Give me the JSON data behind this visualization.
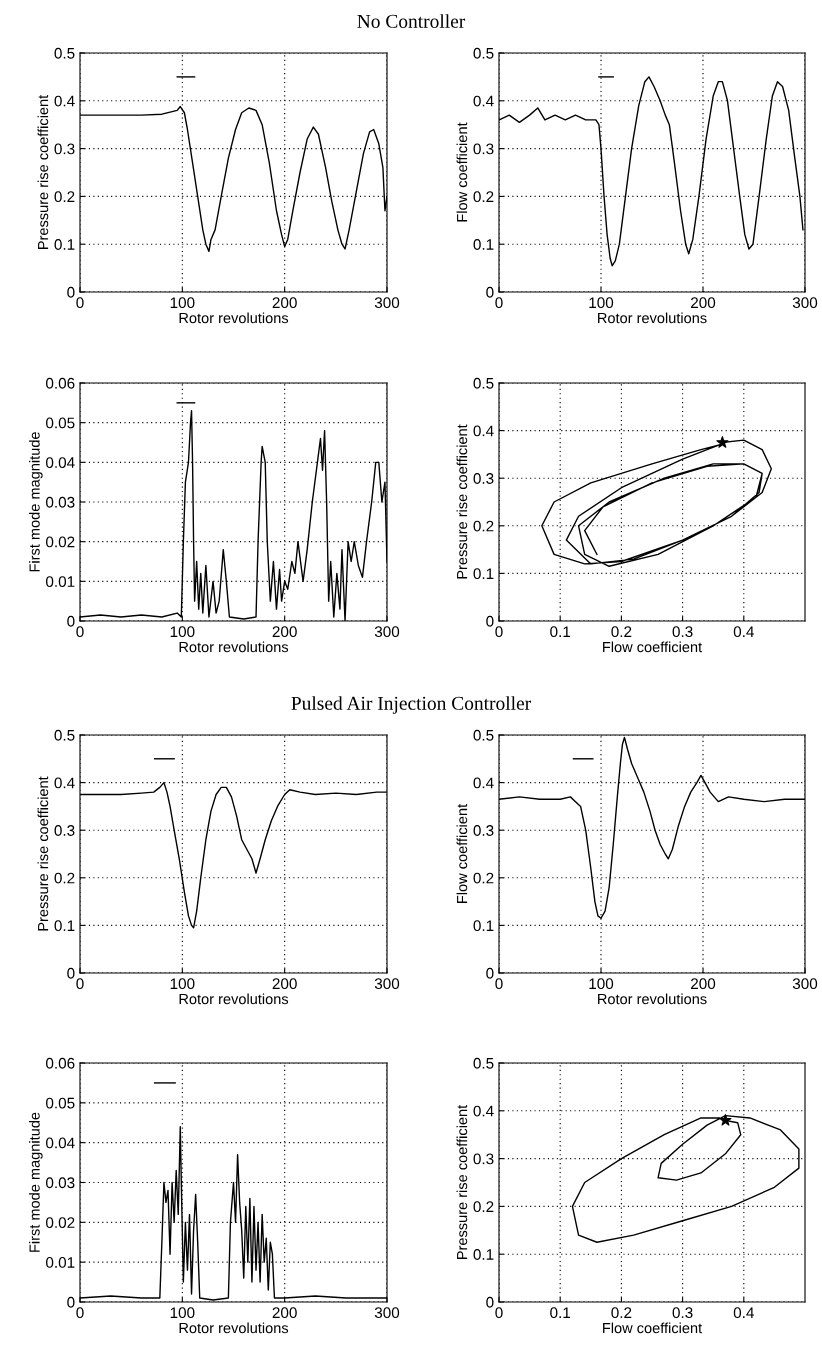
{
  "chart_data": [
    {
      "type": "line",
      "title": "No Controller",
      "xlabel": "Rotor revolutions",
      "ylabel": "Pressure rise coefficient",
      "xlim": [
        0,
        300
      ],
      "ylim": [
        0,
        0.5
      ],
      "xticks": [
        0,
        100,
        200,
        300
      ],
      "yticks": [
        0,
        0.1,
        0.2,
        0.3,
        0.4,
        0.5
      ],
      "grid": true,
      "series": [
        {
          "color": "#000000",
          "x": [
            0,
            20,
            40,
            60,
            80,
            95,
            98,
            102,
            105,
            110,
            115,
            120,
            123,
            126,
            128,
            132,
            138,
            145,
            152,
            158,
            165,
            172,
            178,
            185,
            192,
            197,
            200,
            203,
            208,
            215,
            222,
            228,
            233,
            240,
            246,
            252,
            256,
            259,
            263,
            270,
            277,
            283,
            287,
            292,
            296,
            298,
            300
          ],
          "values": [
            0.37,
            0.37,
            0.37,
            0.37,
            0.372,
            0.38,
            0.388,
            0.375,
            0.34,
            0.27,
            0.2,
            0.13,
            0.1,
            0.085,
            0.11,
            0.13,
            0.2,
            0.28,
            0.34,
            0.375,
            0.385,
            0.38,
            0.35,
            0.27,
            0.17,
            0.12,
            0.095,
            0.11,
            0.17,
            0.25,
            0.32,
            0.345,
            0.33,
            0.26,
            0.19,
            0.13,
            0.1,
            0.09,
            0.13,
            0.21,
            0.29,
            0.335,
            0.34,
            0.31,
            0.26,
            0.17,
            0.2
          ]
        },
        {
          "color": "#000000",
          "x": [
            95,
            112
          ],
          "values": [
            0.45,
            0.45
          ]
        }
      ]
    },
    {
      "type": "line",
      "xlabel": "Rotor revolutions",
      "ylabel": "Flow coefficient",
      "xlim": [
        0,
        300
      ],
      "ylim": [
        0,
        0.5
      ],
      "xticks": [
        0,
        100,
        200,
        300
      ],
      "yticks": [
        0,
        0.1,
        0.2,
        0.3,
        0.4,
        0.5
      ],
      "grid": true,
      "series": [
        {
          "color": "#000000",
          "x": [
            0,
            10,
            20,
            30,
            38,
            45,
            55,
            65,
            75,
            85,
            95,
            98,
            100,
            103,
            106,
            109,
            111,
            114,
            118,
            124,
            130,
            137,
            143,
            147,
            152,
            158,
            163,
            167,
            172,
            178,
            183,
            186,
            190,
            196,
            203,
            210,
            215,
            219,
            224,
            230,
            236,
            241,
            245,
            249,
            255,
            262,
            268,
            273,
            278,
            284,
            290,
            295,
            298
          ],
          "values": [
            0.36,
            0.37,
            0.355,
            0.37,
            0.385,
            0.36,
            0.37,
            0.36,
            0.37,
            0.36,
            0.36,
            0.35,
            0.3,
            0.2,
            0.12,
            0.07,
            0.055,
            0.065,
            0.1,
            0.2,
            0.3,
            0.39,
            0.44,
            0.45,
            0.43,
            0.4,
            0.37,
            0.35,
            0.27,
            0.17,
            0.1,
            0.08,
            0.11,
            0.2,
            0.32,
            0.41,
            0.44,
            0.44,
            0.4,
            0.3,
            0.2,
            0.12,
            0.09,
            0.1,
            0.2,
            0.32,
            0.41,
            0.44,
            0.43,
            0.38,
            0.28,
            0.2,
            0.13
          ]
        },
        {
          "color": "#000000",
          "x": [
            98,
            112
          ],
          "values": [
            0.45,
            0.45
          ]
        }
      ]
    },
    {
      "type": "line",
      "xlabel": "Rotor revolutions",
      "ylabel": "First mode magnitude",
      "xlim": [
        0,
        300
      ],
      "ylim": [
        0,
        0.06
      ],
      "xticks": [
        0,
        100,
        200,
        300
      ],
      "yticks": [
        0,
        0.01,
        0.02,
        0.03,
        0.04,
        0.05,
        0.06
      ],
      "grid": true,
      "series": [
        {
          "color": "#000000",
          "x": [
            0,
            20,
            40,
            60,
            80,
            95,
            99,
            101,
            103,
            106,
            108,
            109,
            110,
            111,
            112,
            114,
            116,
            118,
            120,
            123,
            126,
            130,
            133,
            136,
            140,
            143,
            146,
            160,
            172,
            174,
            177,
            178,
            181,
            183,
            186,
            189,
            192,
            195,
            197,
            200,
            203,
            207,
            210,
            213,
            218,
            222,
            227,
            232,
            235,
            237,
            239,
            241,
            243,
            245,
            248,
            251,
            254,
            256,
            259,
            262,
            265,
            268,
            272,
            276,
            280,
            285,
            289,
            292,
            295,
            298,
            300
          ],
          "values": [
            0.001,
            0.0015,
            0.001,
            0.0015,
            0.001,
            0.002,
            0.001,
            0.02,
            0.035,
            0.04,
            0.05,
            0.053,
            0.04,
            0.02,
            0.005,
            0.015,
            0.003,
            0.012,
            0.002,
            0.014,
            0.001,
            0.01,
            0.002,
            0.005,
            0.018,
            0.01,
            0.001,
            0.0005,
            0.001,
            0.02,
            0.04,
            0.044,
            0.04,
            0.02,
            0.005,
            0.015,
            0.003,
            0.013,
            0.005,
            0.01,
            0.008,
            0.015,
            0.012,
            0.02,
            0.01,
            0.018,
            0.03,
            0.04,
            0.046,
            0.038,
            0.048,
            0.03,
            0.005,
            0.015,
            0.001,
            0.012,
            0.003,
            0.018,
            0.0,
            0.02,
            0.015,
            0.02,
            0.014,
            0.011,
            0.02,
            0.03,
            0.04,
            0.04,
            0.03,
            0.035,
            0.015
          ]
        },
        {
          "color": "#000000",
          "x": [
            95,
            112
          ],
          "values": [
            0.055,
            0.055
          ]
        }
      ]
    },
    {
      "type": "line",
      "xlabel": "Flow coefficient",
      "ylabel": "Pressure rise coefficient",
      "xlim": [
        0,
        0.5
      ],
      "ylim": [
        0,
        0.5
      ],
      "xticks": [
        0,
        0.1,
        0.2,
        0.3,
        0.4
      ],
      "yticks": [
        0,
        0.1,
        0.2,
        0.3,
        0.4,
        0.5
      ],
      "grid": true,
      "series": [
        {
          "color": "#000000",
          "x": [
            0.365,
            0.4,
            0.43,
            0.445,
            0.43,
            0.38,
            0.3,
            0.2,
            0.14,
            0.09,
            0.07,
            0.09,
            0.15,
            0.25,
            0.33,
            0.36,
            0.3,
            0.2,
            0.13,
            0.11,
            0.15,
            0.22,
            0.3,
            0.38,
            0.425,
            0.43,
            0.4,
            0.35,
            0.27,
            0.18,
            0.13,
            0.14,
            0.18,
            0.26,
            0.35,
            0.42,
            0.43,
            0.4,
            0.34,
            0.25,
            0.17,
            0.14,
            0.16
          ],
          "values": [
            0.375,
            0.38,
            0.36,
            0.32,
            0.27,
            0.22,
            0.17,
            0.125,
            0.12,
            0.14,
            0.2,
            0.25,
            0.29,
            0.33,
            0.36,
            0.37,
            0.34,
            0.28,
            0.22,
            0.17,
            0.12,
            0.13,
            0.17,
            0.22,
            0.27,
            0.31,
            0.33,
            0.33,
            0.3,
            0.25,
            0.2,
            0.14,
            0.115,
            0.14,
            0.2,
            0.26,
            0.31,
            0.33,
            0.325,
            0.29,
            0.24,
            0.19,
            0.14
          ]
        },
        {
          "type": "scatter",
          "marker": "star",
          "color": "#000000",
          "x": [
            0.365
          ],
          "values": [
            0.375
          ]
        }
      ]
    },
    {
      "type": "line",
      "title": "Pulsed Air Injection Controller",
      "xlabel": "Rotor revolutions",
      "ylabel": "Pressure rise coefficient",
      "xlim": [
        0,
        300
      ],
      "ylim": [
        0,
        0.5
      ],
      "xticks": [
        0,
        100,
        200,
        300
      ],
      "yticks": [
        0,
        0.1,
        0.2,
        0.3,
        0.4,
        0.5
      ],
      "grid": true,
      "series": [
        {
          "color": "#000000",
          "x": [
            0,
            20,
            40,
            60,
            72,
            78,
            82,
            85,
            88,
            92,
            97,
            102,
            106,
            109,
            111,
            114,
            118,
            123,
            128,
            133,
            138,
            143,
            148,
            153,
            158,
            163,
            168,
            172,
            176,
            181,
            187,
            193,
            200,
            205,
            215,
            230,
            250,
            270,
            290,
            300
          ],
          "values": [
            0.375,
            0.375,
            0.375,
            0.378,
            0.38,
            0.39,
            0.4,
            0.38,
            0.35,
            0.3,
            0.24,
            0.17,
            0.12,
            0.1,
            0.095,
            0.13,
            0.2,
            0.28,
            0.34,
            0.375,
            0.39,
            0.39,
            0.37,
            0.33,
            0.28,
            0.26,
            0.24,
            0.21,
            0.24,
            0.28,
            0.32,
            0.35,
            0.375,
            0.385,
            0.38,
            0.375,
            0.378,
            0.375,
            0.38,
            0.38
          ]
        },
        {
          "color": "#000000",
          "x": [
            73,
            92
          ],
          "values": [
            0.45,
            0.45
          ]
        }
      ]
    },
    {
      "type": "line",
      "xlabel": "Rotor revolutions",
      "ylabel": "Flow coefficient",
      "xlim": [
        0,
        300
      ],
      "ylim": [
        0,
        0.5
      ],
      "xticks": [
        0,
        100,
        200,
        300
      ],
      "yticks": [
        0,
        0.1,
        0.2,
        0.3,
        0.4,
        0.5
      ],
      "grid": true,
      "series": [
        {
          "color": "#000000",
          "x": [
            0,
            20,
            40,
            60,
            70,
            75,
            80,
            85,
            90,
            94,
            97,
            100,
            104,
            108,
            112,
            116,
            119,
            121,
            123,
            126,
            130,
            136,
            142,
            148,
            153,
            158,
            163,
            166,
            170,
            176,
            182,
            188,
            194,
            198,
            202,
            207,
            215,
            225,
            240,
            260,
            280,
            300
          ],
          "values": [
            0.365,
            0.37,
            0.365,
            0.365,
            0.37,
            0.36,
            0.35,
            0.3,
            0.22,
            0.15,
            0.12,
            0.115,
            0.13,
            0.18,
            0.27,
            0.37,
            0.44,
            0.48,
            0.495,
            0.47,
            0.44,
            0.41,
            0.38,
            0.34,
            0.3,
            0.27,
            0.25,
            0.24,
            0.26,
            0.31,
            0.35,
            0.38,
            0.4,
            0.415,
            0.4,
            0.38,
            0.36,
            0.37,
            0.365,
            0.36,
            0.365,
            0.365
          ]
        },
        {
          "color": "#000000",
          "x": [
            73,
            92
          ],
          "values": [
            0.45,
            0.45
          ]
        }
      ]
    },
    {
      "type": "line",
      "xlabel": "Rotor revolutions",
      "ylabel": "First mode magnitude",
      "xlim": [
        0,
        300
      ],
      "ylim": [
        0,
        0.06
      ],
      "xticks": [
        0,
        100,
        200,
        300
      ],
      "yticks": [
        0,
        0.01,
        0.02,
        0.03,
        0.04,
        0.05,
        0.06
      ],
      "grid": true,
      "series": [
        {
          "color": "#000000",
          "x": [
            0,
            30,
            60,
            78,
            80,
            82,
            84,
            86,
            88,
            90,
            92,
            94,
            96,
            98,
            99,
            101,
            103,
            105,
            107,
            109,
            111,
            113,
            115,
            117,
            130,
            145,
            147,
            150,
            152,
            154,
            156,
            158,
            160,
            162,
            164,
            166,
            168,
            170,
            172,
            174,
            176,
            178,
            180,
            182,
            184,
            186,
            188,
            190,
            200,
            230,
            260,
            300
          ],
          "values": [
            0.001,
            0.0015,
            0.001,
            0.001,
            0.015,
            0.03,
            0.025,
            0.028,
            0.012,
            0.03,
            0.02,
            0.033,
            0.022,
            0.044,
            0.03,
            0.005,
            0.02,
            0.008,
            0.022,
            0.002,
            0.018,
            0.027,
            0.015,
            0.001,
            0.0005,
            0.001,
            0.02,
            0.03,
            0.02,
            0.037,
            0.025,
            0.018,
            0.006,
            0.024,
            0.01,
            0.026,
            0.005,
            0.024,
            0.008,
            0.02,
            0.005,
            0.022,
            0.01,
            0.016,
            0.003,
            0.015,
            0.012,
            0.001,
            0.001,
            0.0015,
            0.001,
            0.001
          ]
        },
        {
          "color": "#000000",
          "x": [
            73,
            93
          ],
          "values": [
            0.055,
            0.055
          ]
        }
      ]
    },
    {
      "type": "line",
      "xlabel": "Flow coefficient",
      "ylabel": "Pressure rise coefficient",
      "xlim": [
        0,
        0.5
      ],
      "ylim": [
        0,
        0.5
      ],
      "xticks": [
        0,
        0.1,
        0.2,
        0.3,
        0.4
      ],
      "yticks": [
        0,
        0.1,
        0.2,
        0.3,
        0.4,
        0.5
      ],
      "grid": true,
      "series": [
        {
          "color": "#000000",
          "x": [
            0.37,
            0.39,
            0.395,
            0.37,
            0.33,
            0.29,
            0.26,
            0.265,
            0.3,
            0.34,
            0.37,
            0.41,
            0.46,
            0.49,
            0.49,
            0.45,
            0.38,
            0.3,
            0.22,
            0.16,
            0.13,
            0.12,
            0.14,
            0.2,
            0.27,
            0.33,
            0.36
          ],
          "values": [
            0.38,
            0.375,
            0.35,
            0.31,
            0.27,
            0.255,
            0.26,
            0.29,
            0.33,
            0.37,
            0.39,
            0.385,
            0.36,
            0.32,
            0.28,
            0.24,
            0.2,
            0.17,
            0.14,
            0.125,
            0.14,
            0.2,
            0.25,
            0.3,
            0.35,
            0.385,
            0.385
          ]
        },
        {
          "type": "scatter",
          "marker": "star",
          "color": "#000000",
          "x": [
            0.37
          ],
          "values": [
            0.38
          ]
        }
      ]
    }
  ]
}
